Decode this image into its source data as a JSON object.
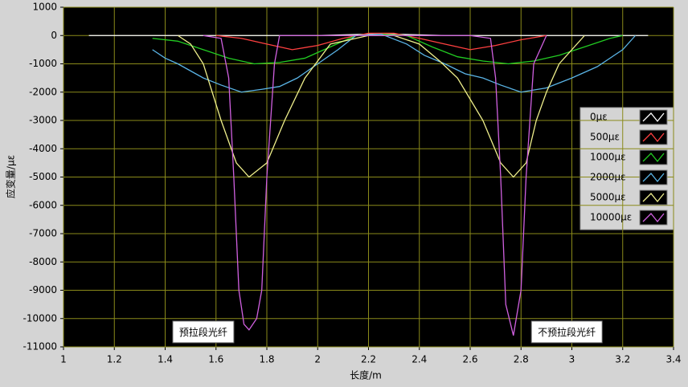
{
  "chart_data": {
    "type": "line",
    "xlabel": "长度/m",
    "ylabel": "应变量/με",
    "xlim": [
      1,
      3.4
    ],
    "xticks": [
      1,
      1.2,
      1.4,
      1.6,
      1.8,
      2,
      2.2,
      2.4,
      2.6,
      2.8,
      3,
      3.2,
      3.4
    ],
    "ylim": [
      -11000,
      1000
    ],
    "yticks": [
      1000,
      0,
      -1000,
      -2000,
      -3000,
      -4000,
      -5000,
      -6000,
      -7000,
      -8000,
      -9000,
      -10000,
      -11000
    ],
    "grid": true,
    "legend": "right",
    "series": [
      {
        "name": "0με",
        "color": "#ffffff",
        "x": [
          1.1,
          1.4,
          1.7,
          2.0,
          2.2,
          2.3,
          2.5,
          2.8,
          3.1,
          3.3
        ],
        "values": [
          0,
          0,
          0,
          0,
          50,
          50,
          0,
          0,
          0,
          0
        ]
      },
      {
        "name": "500με",
        "color": "#ff4040",
        "x": [
          1.6,
          1.7,
          1.8,
          1.9,
          2.0,
          2.1,
          2.2,
          2.3,
          2.4,
          2.5,
          2.6,
          2.7,
          2.8,
          2.9
        ],
        "values": [
          0,
          -100,
          -300,
          -500,
          -350,
          -100,
          80,
          80,
          -100,
          -300,
          -500,
          -350,
          -150,
          0
        ]
      },
      {
        "name": "1000με",
        "color": "#22cc22",
        "x": [
          1.35,
          1.45,
          1.55,
          1.65,
          1.75,
          1.85,
          1.95,
          2.05,
          2.15,
          2.25,
          2.35,
          2.45,
          2.55,
          2.65,
          2.75,
          2.85,
          2.95,
          3.05,
          3.15,
          3.2
        ],
        "values": [
          -100,
          -200,
          -500,
          -800,
          -1000,
          -950,
          -800,
          -400,
          0,
          50,
          0,
          -400,
          -750,
          -900,
          -1000,
          -900,
          -700,
          -400,
          -100,
          0
        ]
      },
      {
        "name": "2000με",
        "color": "#5ab4e6",
        "x": [
          1.35,
          1.4,
          1.45,
          1.55,
          1.62,
          1.7,
          1.78,
          1.85,
          1.92,
          2.0,
          2.08,
          2.15,
          2.25,
          2.35,
          2.42,
          2.5,
          2.58,
          2.65,
          2.72,
          2.8,
          2.9,
          3.0,
          3.1,
          3.2,
          3.25
        ],
        "values": [
          -500,
          -800,
          -1000,
          -1500,
          -1750,
          -2000,
          -1900,
          -1800,
          -1500,
          -1000,
          -500,
          0,
          50,
          -300,
          -700,
          -1000,
          -1350,
          -1500,
          -1750,
          -2000,
          -1850,
          -1500,
          -1100,
          -500,
          0
        ]
      },
      {
        "name": "5000με",
        "color": "#f0f08c",
        "x": [
          1.45,
          1.5,
          1.55,
          1.62,
          1.68,
          1.73,
          1.8,
          1.87,
          1.95,
          2.05,
          2.2,
          2.3,
          2.4,
          2.48,
          2.55,
          2.65,
          2.72,
          2.77,
          2.82,
          2.86,
          2.9,
          2.95,
          3.05
        ],
        "values": [
          0,
          -300,
          -1000,
          -3000,
          -4500,
          -5000,
          -4500,
          -3000,
          -1500,
          -300,
          0,
          0,
          -300,
          -900,
          -1500,
          -3000,
          -4500,
          -5000,
          -4500,
          -3000,
          -2000,
          -1000,
          0
        ]
      },
      {
        "name": "10000με",
        "color": "#d060e0",
        "x": [
          1.55,
          1.62,
          1.65,
          1.67,
          1.69,
          1.71,
          1.73,
          1.76,
          1.78,
          1.8,
          1.83,
          1.85,
          2.6,
          2.68,
          2.7,
          2.72,
          2.74,
          2.77,
          2.8,
          2.82,
          2.85,
          2.9
        ],
        "values": [
          0,
          -100,
          -1500,
          -5000,
          -9000,
          -10200,
          -10400,
          -10000,
          -9000,
          -5000,
          -1000,
          0,
          0,
          -100,
          -1500,
          -5000,
          -9500,
          -10600,
          -9000,
          -5000,
          -1000,
          0
        ]
      }
    ],
    "annotations": [
      {
        "text": "预拉段光纤",
        "x": 1.55,
        "y": -10500
      },
      {
        "text": "不预拉段光纤",
        "x": 2.98,
        "y": -10500
      }
    ]
  }
}
